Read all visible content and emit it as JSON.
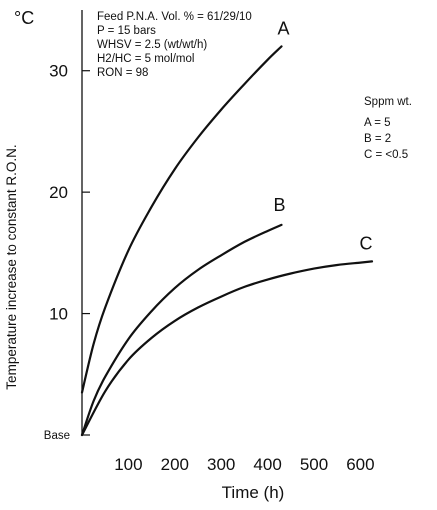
{
  "chart_data": {
    "type": "line",
    "title": "",
    "xlabel": "Time (h)",
    "ylabel": "Temperature increase to constant R.O.N.",
    "y_unit": "°C",
    "xlim": [
      0,
      750
    ],
    "ylim": [
      0,
      35
    ],
    "x_ticks": [
      "100",
      "200",
      "300",
      "400",
      "500",
      "600"
    ],
    "x_tick_values": [
      100,
      200,
      300,
      400,
      500,
      600
    ],
    "y_ticks": [
      "Base",
      "10",
      "20",
      "30"
    ],
    "y_tick_values": [
      0,
      10,
      20,
      30
    ],
    "grid": false,
    "conditions": [
      "Feed P.N.A. Vol. % = 61/29/10",
      "P = 15 bars",
      "WHSV = 2.5 (wt/wt/h)",
      "H2/HC = 5 mol/mol",
      "RON = 98"
    ],
    "legend": {
      "title": "Sppm wt.",
      "entries": [
        "A = 5",
        "B = 2",
        "C = <0.5"
      ],
      "placement": "top-right"
    },
    "series": [
      {
        "name": "A",
        "x": [
          0,
          25,
          50,
          100,
          150,
          200,
          250,
          300,
          350,
          400,
          430
        ],
        "y": [
          3.5,
          7.5,
          10.5,
          15.2,
          18.8,
          21.9,
          24.5,
          26.8,
          28.9,
          30.9,
          32.0
        ]
      },
      {
        "name": "B",
        "x": [
          0,
          25,
          50,
          100,
          150,
          200,
          250,
          300,
          350,
          400,
          430
        ],
        "y": [
          0,
          2.8,
          4.8,
          7.9,
          10.2,
          12.1,
          13.6,
          14.8,
          15.9,
          16.8,
          17.3
        ]
      },
      {
        "name": "C",
        "x": [
          0,
          50,
          100,
          150,
          200,
          250,
          300,
          350,
          400,
          450,
          500,
          550,
          600,
          625
        ],
        "y": [
          0,
          3.6,
          6.2,
          8.0,
          9.4,
          10.5,
          11.4,
          12.2,
          12.8,
          13.3,
          13.7,
          14.0,
          14.2,
          14.3
        ]
      }
    ]
  }
}
